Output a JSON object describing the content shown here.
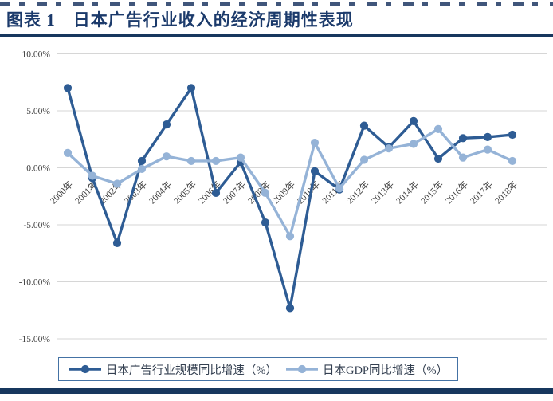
{
  "header": {
    "title": "图表 1　日本广告行业收入的经济周期性表现"
  },
  "colors": {
    "navy": "#17375E",
    "title_text": "#1B3A6B",
    "series_ad": "#2E5C94",
    "series_gdp": "#95B3D7",
    "grid": "#D6D6D6",
    "axis_text": "#404040",
    "legend_border": "#4472A4",
    "legend_text": "#333F50"
  },
  "chart_data": {
    "type": "line",
    "title": "日本广告行业收入的经济周期性表现",
    "categories": [
      "2000年",
      "2001年",
      "2002年",
      "2003年",
      "2004年",
      "2005年",
      "2006年",
      "2007年",
      "2008年",
      "2009年",
      "2010年",
      "2011年",
      "2012年",
      "2013年",
      "2014年",
      "2015年",
      "2016年",
      "2017年",
      "2018年"
    ],
    "series": [
      {
        "name": "日本广告行业规模同比增速（%）",
        "color": "#2E5C94",
        "values": [
          7.0,
          -0.9,
          -6.6,
          0.6,
          3.8,
          7.0,
          -2.2,
          0.5,
          -4.8,
          -12.3,
          -0.3,
          -1.9,
          3.7,
          1.8,
          4.1,
          0.8,
          2.6,
          2.7,
          2.9
        ]
      },
      {
        "name": "日本GDP同比增速（%）",
        "color": "#95B3D7",
        "values": [
          1.3,
          -0.7,
          -1.4,
          -0.1,
          1.0,
          0.6,
          0.6,
          0.9,
          -2.2,
          -6.0,
          2.2,
          -1.8,
          0.7,
          1.7,
          2.1,
          3.4,
          0.9,
          1.6,
          0.6
        ]
      }
    ],
    "ylim": [
      -15,
      10
    ],
    "yticks": [
      {
        "label": "10.00%",
        "value": 10
      },
      {
        "label": "5.00%",
        "value": 5
      },
      {
        "label": "0.00%",
        "value": 0
      },
      {
        "label": "-5.00%",
        "value": -5
      },
      {
        "label": "-10.00%",
        "value": -10
      },
      {
        "label": "-15.00%",
        "value": -15
      }
    ],
    "xlabel": "",
    "ylabel": "",
    "grid": true,
    "x_label_rotation": -45,
    "legend_position": "bottom"
  }
}
